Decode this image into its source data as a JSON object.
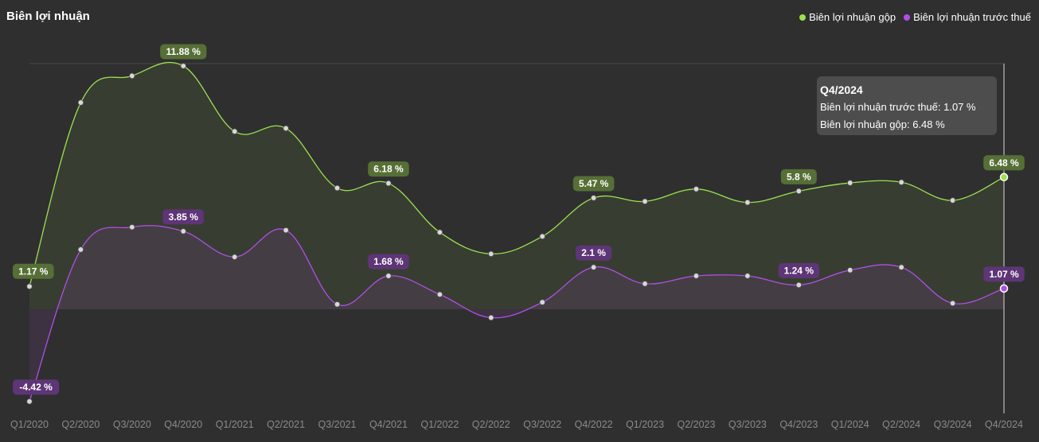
{
  "title": "Biên lợi nhuận",
  "legend": [
    {
      "name": "Biên lợi nhuận gộp",
      "color": "#9be24f"
    },
    {
      "name": "Biên lợi nhuận trước thuế",
      "color": "#b04ee8"
    }
  ],
  "tooltip": {
    "title": "Q4/2024",
    "line1": "Biên lợi nhuận trước thuế: 1.07 %",
    "line2": "Biên lợi nhuận gộp: 6.48 %"
  },
  "chart_data": {
    "type": "line",
    "x": [
      "Q1/2020",
      "Q2/2020",
      "Q3/2020",
      "Q4/2020",
      "Q1/2021",
      "Q2/2021",
      "Q3/2021",
      "Q4/2021",
      "Q1/2022",
      "Q2/2022",
      "Q3/2022",
      "Q4/2022",
      "Q1/2023",
      "Q2/2023",
      "Q3/2023",
      "Q4/2023",
      "Q1/2024",
      "Q2/2024",
      "Q3/2024",
      "Q4/2024"
    ],
    "series": [
      {
        "name": "Biên lợi nhuận gộp",
        "color": "#9be24f",
        "values": [
          1.17,
          10.1,
          11.4,
          11.88,
          8.7,
          8.85,
          5.95,
          6.18,
          3.8,
          2.75,
          3.6,
          5.47,
          5.3,
          5.9,
          5.25,
          5.8,
          6.2,
          6.23,
          5.35,
          6.48
        ],
        "labels": [
          {
            "index": 0,
            "text": "1.17 %"
          },
          {
            "index": 3,
            "text": "11.88 %"
          },
          {
            "index": 7,
            "text": "6.18 %"
          },
          {
            "index": 11,
            "text": "5.47 %"
          },
          {
            "index": 15,
            "text": "5.8 %"
          },
          {
            "index": 19,
            "text": "6.48 %"
          }
        ]
      },
      {
        "name": "Biên lợi nhuận trước thuế",
        "color": "#b04ee8",
        "values": [
          -4.42,
          2.96,
          4.05,
          3.85,
          2.6,
          3.9,
          0.3,
          1.68,
          0.78,
          -0.35,
          0.4,
          2.1,
          1.3,
          1.68,
          1.68,
          1.24,
          1.96,
          2.1,
          0.35,
          1.07
        ],
        "labels": [
          {
            "index": 0,
            "text": "-4.42 %"
          },
          {
            "index": 3,
            "text": "3.85 %"
          },
          {
            "index": 7,
            "text": "1.68 %"
          },
          {
            "index": 11,
            "text": "2.1 %"
          },
          {
            "index": 15,
            "text": "1.24 %"
          },
          {
            "index": 19,
            "text": "1.07 %"
          }
        ]
      }
    ],
    "ylim": [
      -4.42,
      11.88
    ],
    "highlight_index": 19,
    "grid": false,
    "legend_position": "top-right"
  }
}
